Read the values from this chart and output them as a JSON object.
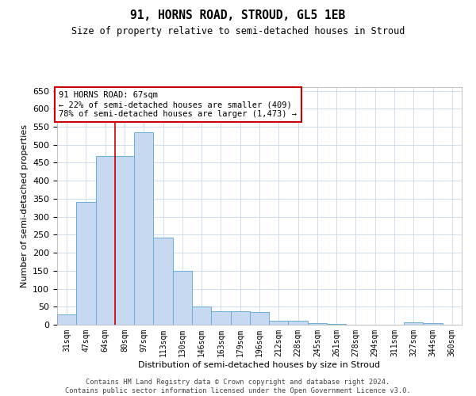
{
  "title": "91, HORNS ROAD, STROUD, GL5 1EB",
  "subtitle": "Size of property relative to semi-detached houses in Stroud",
  "xlabel": "Distribution of semi-detached houses by size in Stroud",
  "ylabel": "Number of semi-detached properties",
  "footnote": "Contains HM Land Registry data © Crown copyright and database right 2024.\nContains public sector information licensed under the Open Government Licence v3.0.",
  "categories": [
    "31sqm",
    "47sqm",
    "64sqm",
    "80sqm",
    "97sqm",
    "113sqm",
    "130sqm",
    "146sqm",
    "163sqm",
    "179sqm",
    "196sqm",
    "212sqm",
    "228sqm",
    "245sqm",
    "261sqm",
    "278sqm",
    "294sqm",
    "311sqm",
    "327sqm",
    "344sqm",
    "360sqm"
  ],
  "values": [
    28,
    340,
    468,
    468,
    535,
    243,
    150,
    50,
    38,
    37,
    35,
    12,
    10,
    5,
    3,
    1,
    1,
    1,
    7,
    5,
    1
  ],
  "bar_color": "#c6d9f0",
  "bar_edge_color": "#6baed6",
  "property_size": 67,
  "pct_smaller": 22,
  "pct_larger": 78,
  "n_smaller": 409,
  "n_larger": 1473,
  "vline_x": 2.5,
  "annotation_box_color": "#cc0000",
  "ylim": [
    0,
    660
  ],
  "yticks": [
    0,
    50,
    100,
    150,
    200,
    250,
    300,
    350,
    400,
    450,
    500,
    550,
    600,
    650
  ]
}
